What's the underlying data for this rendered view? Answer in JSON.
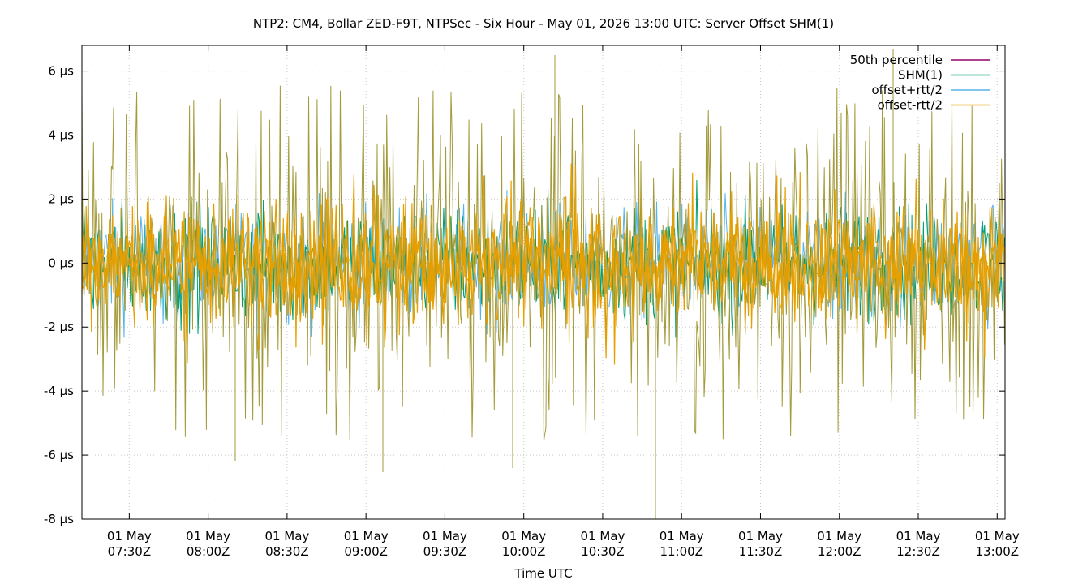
{
  "chart_data": {
    "type": "line",
    "title": "NTP2: CM4, Bollar ZED-F9T, NTPSec - Six Hour - May 01, 2026 13:00 UTC: Server Offset SHM(1)",
    "xlabel": "Time UTC",
    "ylabel": "",
    "y_unit": "µs",
    "ylim": [
      -8,
      6.8
    ],
    "xlim": [
      "07:12Z",
      "13:03Z"
    ],
    "yticks": [
      {
        "value": -8,
        "label": "-8 µs"
      },
      {
        "value": -6,
        "label": "-6 µs"
      },
      {
        "value": -4,
        "label": "-4 µs"
      },
      {
        "value": -2,
        "label": "-2 µs"
      },
      {
        "value": 0,
        "label": "0 µs"
      },
      {
        "value": 2,
        "label": "2 µs"
      },
      {
        "value": 4,
        "label": "4 µs"
      },
      {
        "value": 6,
        "label": "6 µs"
      }
    ],
    "xticks": [
      {
        "time": "07:30Z",
        "date": "01 May"
      },
      {
        "time": "08:00Z",
        "date": "01 May"
      },
      {
        "time": "08:30Z",
        "date": "01 May"
      },
      {
        "time": "09:00Z",
        "date": "01 May"
      },
      {
        "time": "09:30Z",
        "date": "01 May"
      },
      {
        "time": "10:00Z",
        "date": "01 May"
      },
      {
        "time": "10:30Z",
        "date": "01 May"
      },
      {
        "time": "11:00Z",
        "date": "01 May"
      },
      {
        "time": "11:30Z",
        "date": "01 May"
      },
      {
        "time": "12:00Z",
        "date": "01 May"
      },
      {
        "time": "12:30Z",
        "date": "01 May"
      },
      {
        "time": "13:00Z",
        "date": "01 May"
      }
    ],
    "grid": true,
    "legend_position": "top-right",
    "series": [
      {
        "name": "50th percentile",
        "color": "#94006b",
        "approx_value": 0
      },
      {
        "name": "SHM(1)",
        "color": "#009e73",
        "typical_range": [
          -2,
          2
        ]
      },
      {
        "name": "offset+rtt/2",
        "color": "#56b4e9",
        "typical_range": [
          -2,
          2
        ]
      },
      {
        "name": "offset-rtt/2",
        "color": "#e69f00",
        "typical_range": [
          -2,
          2
        ],
        "spike_range": [
          -8,
          6.7
        ]
      }
    ],
    "overlay_color": "#a39a3a"
  }
}
